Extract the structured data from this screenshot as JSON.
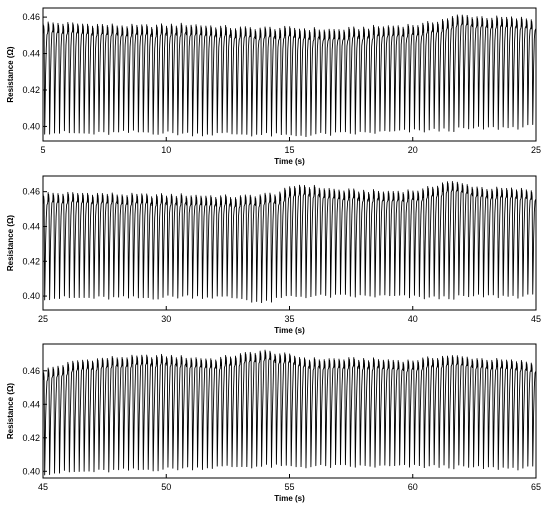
{
  "chart_data": [
    {
      "type": "line",
      "title": "",
      "xlabel": "Time (s)",
      "ylabel": "Resistance (Ω)",
      "xlim": [
        5,
        25
      ],
      "ylim": [
        0.392,
        0.465
      ],
      "xticks": [
        "5",
        "10",
        "15",
        "20",
        "25"
      ],
      "yticks": [
        "0.40",
        "0.42",
        "0.44",
        "0.46"
      ],
      "period_s": 0.2,
      "grid": false,
      "line_color": "#000000",
      "peaks": {
        "x": [
          5,
          7,
          9,
          11,
          13,
          15,
          17,
          19,
          20.5,
          22,
          23,
          25
        ],
        "y": [
          0.455,
          0.454,
          0.453,
          0.454,
          0.452,
          0.452,
          0.451,
          0.453,
          0.454,
          0.459,
          0.458,
          0.457
        ]
      },
      "troughs": {
        "x": [
          5,
          7,
          9,
          11,
          13,
          15,
          17,
          19,
          21,
          23,
          25
        ],
        "y": [
          0.397,
          0.396,
          0.397,
          0.396,
          0.396,
          0.395,
          0.396,
          0.397,
          0.398,
          0.399,
          0.4
        ]
      }
    },
    {
      "type": "line",
      "title": "",
      "xlabel": "Time (s)",
      "ylabel": "Resistance (Ω)",
      "xlim": [
        25,
        45
      ],
      "ylim": [
        0.392,
        0.469
      ],
      "xticks": [
        "25",
        "30",
        "35",
        "40",
        "45"
      ],
      "yticks": [
        "0.40",
        "0.42",
        "0.44",
        "0.46"
      ],
      "period_s": 0.2,
      "grid": false,
      "line_color": "#000000",
      "peaks": {
        "x": [
          25,
          27,
          29,
          31,
          33,
          34.5,
          35.5,
          37,
          39,
          40.5,
          41.5,
          43,
          45
        ],
        "y": [
          0.457,
          0.457,
          0.456,
          0.456,
          0.455,
          0.457,
          0.462,
          0.459,
          0.458,
          0.459,
          0.464,
          0.46,
          0.459
        ]
      },
      "troughs": {
        "x": [
          25,
          27,
          29,
          31,
          33,
          34,
          35,
          37,
          39,
          41,
          43,
          45
        ],
        "y": [
          0.399,
          0.399,
          0.399,
          0.4,
          0.399,
          0.396,
          0.4,
          0.4,
          0.4,
          0.399,
          0.4,
          0.4
        ]
      }
    },
    {
      "type": "line",
      "title": "",
      "xlabel": "Time (s)",
      "ylabel": "Resistance (Ω)",
      "xlim": [
        45,
        65
      ],
      "ylim": [
        0.396,
        0.476
      ],
      "xticks": [
        "45",
        "50",
        "55",
        "60",
        "65"
      ],
      "yticks": [
        "0.40",
        "0.42",
        "0.44",
        "0.46"
      ],
      "period_s": 0.2,
      "grid": false,
      "line_color": "#000000",
      "peaks": {
        "x": [
          45,
          46.5,
          48,
          50,
          52,
          54,
          56,
          58,
          60,
          61.5,
          63,
          65
        ],
        "y": [
          0.458,
          0.464,
          0.466,
          0.467,
          0.465,
          0.47,
          0.465,
          0.465,
          0.464,
          0.467,
          0.465,
          0.463
        ]
      },
      "troughs": {
        "x": [
          45,
          47,
          49,
          51,
          53,
          55,
          57,
          59,
          61,
          63,
          65
        ],
        "y": [
          0.399,
          0.4,
          0.401,
          0.402,
          0.403,
          0.403,
          0.403,
          0.403,
          0.403,
          0.402,
          0.402
        ]
      }
    }
  ]
}
